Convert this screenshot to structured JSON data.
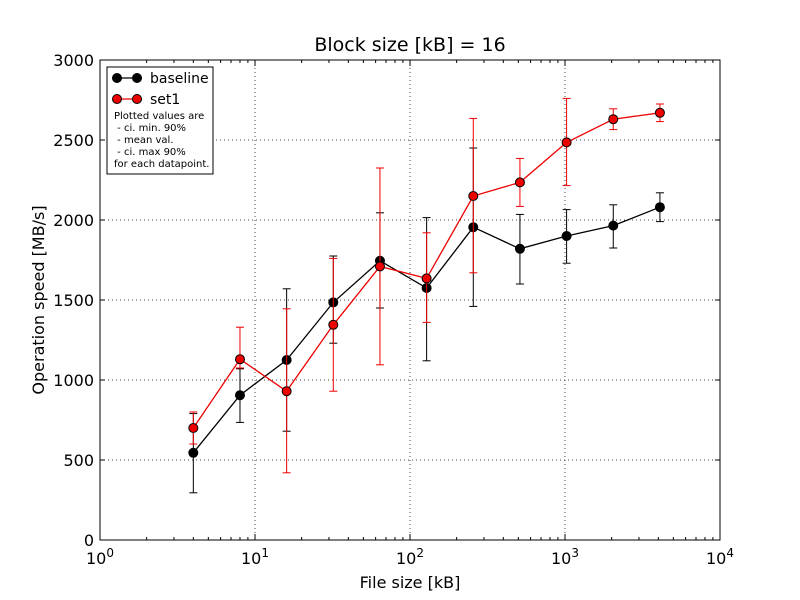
{
  "chart_data": {
    "type": "line",
    "title": "Block size [kB] = 16",
    "xlabel": "File size [kB]",
    "ylabel": "Operation speed [MB/s]",
    "xscale": "log",
    "xlim": [
      1,
      10000
    ],
    "ylim": [
      0,
      3000
    ],
    "grid": true,
    "legend_position": "top-left",
    "x_ticks": [
      {
        "base": "10",
        "exp": "0"
      },
      {
        "base": "10",
        "exp": "1"
      },
      {
        "base": "10",
        "exp": "2"
      },
      {
        "base": "10",
        "exp": "3"
      },
      {
        "base": "10",
        "exp": "4"
      }
    ],
    "y_ticks": [
      "0",
      "500",
      "1000",
      "1500",
      "2000",
      "2500",
      "3000"
    ],
    "x": [
      4,
      8,
      16,
      32,
      64,
      128,
      256,
      512,
      1024,
      2048,
      4096
    ],
    "series": [
      {
        "name": "baseline",
        "color": "#000000",
        "marker_color": "#000000",
        "values": [
          545,
          905,
          1125,
          1485,
          1745,
          1575,
          1955,
          1820,
          1900,
          1965,
          2080
        ],
        "ci_min": [
          295,
          735,
          680,
          1230,
          1450,
          1120,
          1460,
          1600,
          1730,
          1825,
          1990
        ],
        "ci_max": [
          790,
          1070,
          1570,
          1775,
          2045,
          2015,
          2450,
          2035,
          2065,
          2095,
          2170
        ]
      },
      {
        "name": "set1",
        "color": "#ee0000",
        "marker_color": "#ee0000",
        "values": [
          700,
          1130,
          930,
          1345,
          1710,
          1635,
          2150,
          2235,
          2485,
          2630,
          2670
        ],
        "ci_min": [
          600,
          1075,
          420,
          930,
          1095,
          1360,
          1670,
          2085,
          2215,
          2565,
          2615
        ],
        "ci_max": [
          800,
          1330,
          1445,
          1760,
          2325,
          1920,
          2635,
          2385,
          2760,
          2695,
          2725
        ]
      }
    ],
    "legend_note": [
      "Plotted values are",
      " - ci. min. 90%",
      " - mean val.",
      " - ci. max 90%",
      "for each datapoint."
    ]
  }
}
